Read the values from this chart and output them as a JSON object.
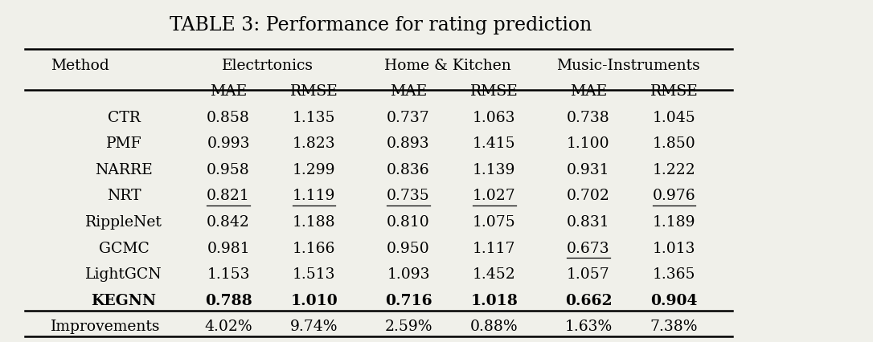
{
  "title": "TABLE 3: Performance for rating prediction",
  "col_groups": [
    {
      "label": "Electrtonics"
    },
    {
      "label": "Home & Kitchen"
    },
    {
      "label": "Music-Instruments"
    }
  ],
  "methods": [
    "CTR",
    "PMF",
    "NARRE",
    "NRT",
    "RippleNet",
    "GCMC",
    "LightGCN",
    "KEGNN"
  ],
  "data": {
    "CTR": [
      "0.858",
      "1.135",
      "0.737",
      "1.063",
      "0.738",
      "1.045"
    ],
    "PMF": [
      "0.993",
      "1.823",
      "0.893",
      "1.415",
      "1.100",
      "1.850"
    ],
    "NARRE": [
      "0.958",
      "1.299",
      "0.836",
      "1.139",
      "0.931",
      "1.222"
    ],
    "NRT": [
      "0.821",
      "1.119",
      "0.735",
      "1.027",
      "0.702",
      "0.976"
    ],
    "RippleNet": [
      "0.842",
      "1.188",
      "0.810",
      "1.075",
      "0.831",
      "1.189"
    ],
    "GCMC": [
      "0.981",
      "1.166",
      "0.950",
      "1.117",
      "0.673",
      "1.013"
    ],
    "LightGCN": [
      "1.153",
      "1.513",
      "1.093",
      "1.452",
      "1.057",
      "1.365"
    ],
    "KEGNN": [
      "0.788",
      "1.010",
      "0.716",
      "1.018",
      "0.662",
      "0.904"
    ]
  },
  "improvements": [
    "4.02%",
    "9.74%",
    "2.59%",
    "0.88%",
    "1.63%",
    "7.38%"
  ],
  "underlined": {
    "NRT": [
      0,
      1,
      2,
      3,
      5
    ],
    "GCMC": [
      4
    ]
  },
  "bold_row": "KEGNN",
  "background_color": "#f0f0ea",
  "title_fontsize": 17,
  "header_fontsize": 13.5,
  "cell_fontsize": 13.5
}
